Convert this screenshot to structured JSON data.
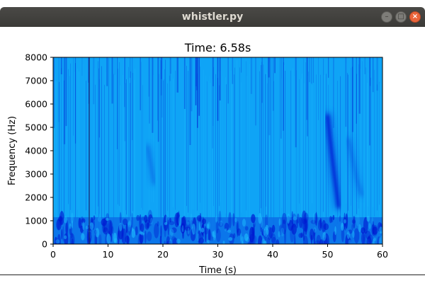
{
  "window": {
    "title": "whistler.py",
    "buttons": {
      "minimize": "–",
      "maximize": "□",
      "close": "×"
    }
  },
  "chart_data": {
    "type": "heatmap",
    "title": "Time: 6.58s",
    "xlabel": "Time (s)",
    "ylabel": "Frequency (Hz)",
    "xlim": [
      0,
      60
    ],
    "ylim": [
      0,
      8000
    ],
    "x_ticks": [
      0,
      10,
      20,
      30,
      40,
      50,
      60
    ],
    "y_ticks": [
      0,
      1000,
      2000,
      3000,
      4000,
      5000,
      6000,
      7000,
      8000
    ],
    "grid": false,
    "colors": {
      "background": "#0fa4f6",
      "light": "#20c0ff",
      "dark": "#0018d0",
      "cursor": "#1c2a6c"
    },
    "cursor_time_s": 6.58,
    "low_band_hz": [
      0,
      1150
    ],
    "features": [
      {
        "name": "whistler-main",
        "points": [
          [
            50.0,
            5500
          ],
          [
            50.4,
            4600
          ],
          [
            50.8,
            3800
          ],
          [
            51.2,
            3000
          ],
          [
            51.6,
            2300
          ],
          [
            52.0,
            1600
          ]
        ]
      },
      {
        "name": "whistler-faint",
        "points": [
          [
            53.8,
            4500
          ],
          [
            54.6,
            3600
          ],
          [
            55.3,
            2800
          ],
          [
            56.2,
            2100
          ]
        ]
      },
      {
        "name": "whistler-early",
        "points": [
          [
            17.2,
            4200
          ],
          [
            17.8,
            3400
          ],
          [
            18.4,
            2600
          ]
        ]
      }
    ]
  }
}
